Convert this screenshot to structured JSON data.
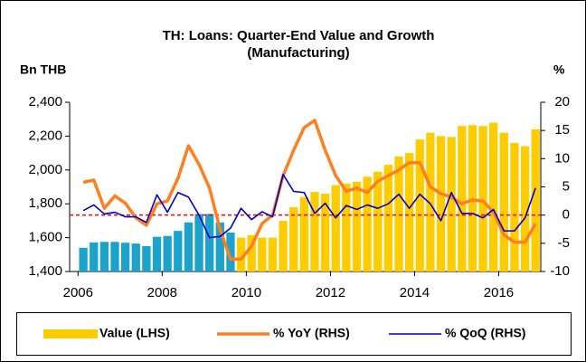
{
  "chart_data": {
    "type": "bar_line",
    "title": "TH: Loans: Quarter-End Value and Growth",
    "subtitle": "(Manufacturing)",
    "y_label": "Bn THB",
    "y2_label": "%",
    "x": [
      2006.125,
      2006.375,
      2006.625,
      2006.875,
      2007.125,
      2007.375,
      2007.625,
      2007.875,
      2008.125,
      2008.375,
      2008.625,
      2008.875,
      2009.125,
      2009.375,
      2009.625,
      2009.875,
      2010.125,
      2010.375,
      2010.625,
      2010.875,
      2011.125,
      2011.375,
      2011.625,
      2011.875,
      2012.125,
      2012.375,
      2012.625,
      2012.875,
      2013.125,
      2013.375,
      2013.625,
      2013.875,
      2014.125,
      2014.375,
      2014.625,
      2014.875,
      2015.125,
      2015.375,
      2015.625,
      2015.875,
      2016.125,
      2016.375,
      2016.625,
      2016.875
    ],
    "xlim": [
      2005.8,
      2017
    ],
    "xticks": [
      2006,
      2008,
      2010,
      2012,
      2014,
      2016
    ],
    "ylim": [
      1400,
      2400
    ],
    "yticks": [
      {
        "value": 1400,
        "label": "1,400"
      },
      {
        "value": 1600,
        "label": "1,600"
      },
      {
        "value": 1800,
        "label": "1,800"
      },
      {
        "value": 2000,
        "label": "2,000"
      },
      {
        "value": 2200,
        "label": "2,200"
      },
      {
        "value": 2400,
        "label": "2,400"
      }
    ],
    "y2lim": [
      -10,
      20
    ],
    "y2ticks": [
      -10,
      -5,
      0,
      5,
      10,
      15,
      20
    ],
    "reference_line": {
      "axis": "y2",
      "value": 0,
      "color": "#ff0000"
    },
    "series": [
      {
        "name": "Value (LHS)",
        "kind": "bar",
        "color": "#ffcc00",
        "colors": [
          "#1ca3cc",
          "#1ca3cc",
          "#1ca3cc",
          "#1ca3cc",
          "#1ca3cc",
          "#1ca3cc",
          "#1ca3cc",
          "#1ca3cc",
          "#1ca3cc",
          "#1ca3cc",
          "#1ca3cc",
          "#1ca3cc",
          "#1ca3cc",
          "#1ca3cc",
          "#1ca3cc",
          "#ffcc00",
          "#ffcc00",
          "#ffcc00",
          "#ffcc00",
          "#ffcc00",
          "#ffcc00",
          "#ffcc00",
          "#ffcc00",
          "#ffcc00",
          "#ffcc00",
          "#ffcc00",
          "#ffcc00",
          "#ffcc00",
          "#ffcc00",
          "#ffcc00",
          "#ffcc00",
          "#ffcc00",
          "#ffcc00",
          "#ffcc00",
          "#ffcc00",
          "#ffcc00",
          "#ffcc00",
          "#ffcc00",
          "#ffcc00",
          "#ffcc00",
          "#ffcc00",
          "#ffcc00",
          "#ffcc00",
          "#ffcc00"
        ],
        "values": [
          1540,
          1572,
          1575,
          1575,
          1570,
          1565,
          1550,
          1605,
          1610,
          1640,
          1690,
          1740,
          1740,
          1690,
          1630,
          1600,
          1615,
          1600,
          1600,
          1700,
          1780,
          1840,
          1870,
          1860,
          1910,
          1920,
          1930,
          1960,
          1990,
          2030,
          2080,
          2100,
          2180,
          2220,
          2200,
          2195,
          2260,
          2265,
          2260,
          2280,
          2220,
          2160,
          2140,
          2240
        ]
      },
      {
        "name": "% YoY (RHS)",
        "kind": "line",
        "axis": "y2",
        "color": "#ff7f1e",
        "values": [
          5.8,
          6.2,
          1.2,
          3.4,
          2.1,
          -0.5,
          -1.8,
          2.0,
          2.5,
          6.5,
          12.3,
          9.0,
          4.8,
          -2.5,
          -7.8,
          -7.8,
          -5.5,
          -1.5,
          0.0,
          7.0,
          11.5,
          15.5,
          16.8,
          11.5,
          7.0,
          4.2,
          4.8,
          4.0,
          6.0,
          7.0,
          8.0,
          9.3,
          9.3,
          5.0,
          3.8,
          3.2,
          2.0,
          2.7,
          2.5,
          0.5,
          -3.5,
          -4.8,
          -4.8,
          -1.5
        ]
      },
      {
        "name": "% QoQ (RHS)",
        "kind": "line",
        "axis": "y2",
        "color": "#0000cc",
        "values": [
          0.8,
          1.8,
          0.2,
          0.5,
          -0.3,
          -0.3,
          -1.3,
          3.6,
          0.5,
          4.0,
          3.2,
          0.0,
          -4.0,
          -3.8,
          -2.3,
          1.2,
          -0.8,
          0.6,
          -0.3,
          7.2,
          4.2,
          4.0,
          0.3,
          2.1,
          -0.5,
          1.7,
          1.0,
          1.8,
          1.2,
          2.0,
          3.7,
          1.2,
          3.7,
          2.0,
          -1.0,
          4.0,
          0.3,
          0.3,
          -0.5,
          1.0,
          -2.8,
          -2.8,
          -0.5,
          4.8
        ]
      }
    ]
  }
}
